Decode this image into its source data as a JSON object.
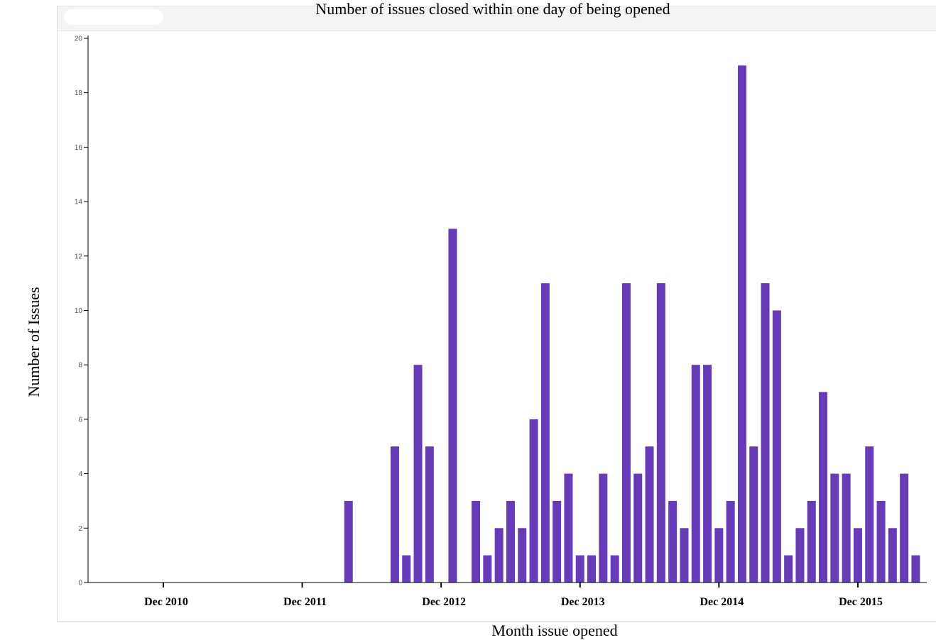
{
  "chart_data": {
    "type": "bar",
    "title": "Number of issues closed within one day of being opened",
    "xlabel": "Month issue opened",
    "ylabel": "Number of Issues",
    "ylim": [
      0,
      20
    ],
    "yticks": [
      0,
      2,
      4,
      6,
      8,
      10,
      12,
      14,
      16,
      18,
      20
    ],
    "x_axis_start": "2010-06",
    "x_axis_end": "2016-03",
    "xtick_labels": [
      {
        "date": "2010-12",
        "label": "Dec 2010"
      },
      {
        "date": "2011-12",
        "label": "Dec 2011"
      },
      {
        "date": "2012-12",
        "label": "Dec 2012"
      },
      {
        "date": "2013-12",
        "label": "Dec 2013"
      },
      {
        "date": "2014-12",
        "label": "Dec 2014"
      },
      {
        "date": "2015-12",
        "label": "Dec 2015"
      }
    ],
    "bar_color": "#673AB7",
    "series": [
      {
        "months": [
          "2012-04",
          "2012-08",
          "2012-09",
          "2012-10",
          "2012-11",
          "2013-01",
          "2013-03",
          "2013-04",
          "2013-05",
          "2013-06",
          "2013-07",
          "2013-08",
          "2013-09",
          "2013-10",
          "2013-11",
          "2013-12",
          "2014-01",
          "2014-02",
          "2014-03",
          "2014-04",
          "2014-05",
          "2014-06",
          "2014-07",
          "2014-08",
          "2014-09",
          "2014-10",
          "2014-11",
          "2014-12",
          "2015-01",
          "2015-02",
          "2015-03",
          "2015-04",
          "2015-05",
          "2015-06",
          "2015-07",
          "2015-08",
          "2015-09",
          "2015-10",
          "2015-11",
          "2015-12",
          "2016-01",
          "2016-02",
          "2016-03",
          "2016-04",
          "2016-05",
          "2016-06"
        ],
        "values": [
          3,
          5,
          1,
          8,
          5,
          13,
          3,
          1,
          2,
          3,
          2,
          6,
          11,
          3,
          4,
          1,
          1,
          4,
          1,
          11,
          4,
          5,
          11,
          3,
          2,
          8,
          8,
          2,
          3,
          19,
          5,
          11,
          10,
          1,
          2,
          3,
          7,
          4,
          4,
          2,
          5,
          3,
          2,
          4,
          1,
          0
        ]
      }
    ]
  }
}
